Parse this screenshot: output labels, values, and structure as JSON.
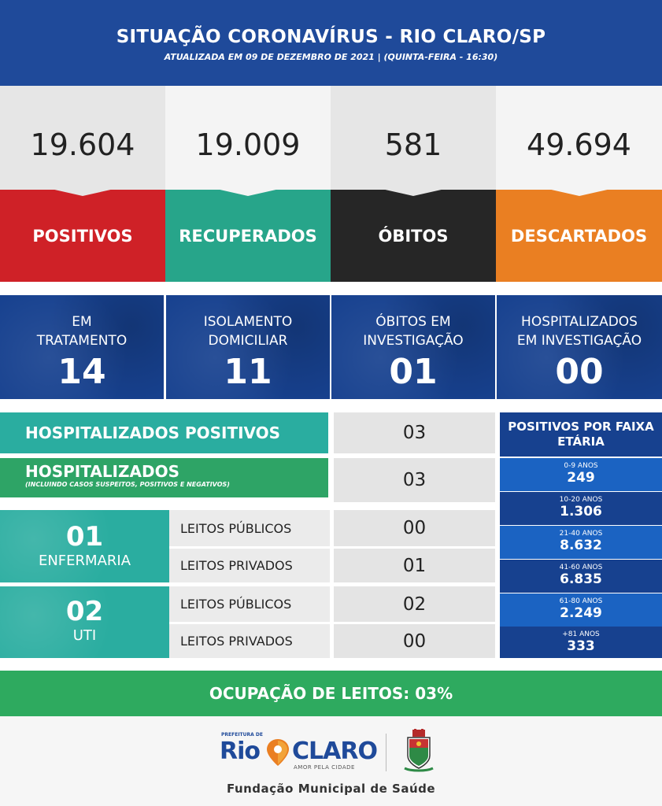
{
  "header": {
    "title": "SITUAÇÃO CORONAVÍRUS - RIO CLARO/SP",
    "subtitle": "ATUALIZADA EM 09 DE DEZEMBRO DE 2021 | (QUINTA-FEIRA - 16:30)"
  },
  "stats": [
    {
      "value": "19.604",
      "label": "POSITIVOS",
      "color": "#cf2127"
    },
    {
      "value": "19.009",
      "label": "RECUPERADOS",
      "color": "#27a58a"
    },
    {
      "value": "581",
      "label": "ÓBITOS",
      "color": "#262626"
    },
    {
      "value": "49.694",
      "label": "DESCARTADOS",
      "color": "#ea7f22"
    }
  ],
  "info": [
    {
      "label": "EM\nTRATAMENTO",
      "value": "14"
    },
    {
      "label": "ISOLAMENTO\nDOMICILIAR",
      "value": "11"
    },
    {
      "label": "ÓBITOS EM\nINVESTIGAÇÃO",
      "value": "01"
    },
    {
      "label": "HOSPITALIZADOS\nEM INVESTIGAÇÃO",
      "value": "00"
    }
  ],
  "hospitalizados_positivos": {
    "label": "HOSPITALIZADOS POSITIVOS",
    "value": "03"
  },
  "hospitalizados": {
    "label": "HOSPITALIZADOS",
    "note": "(INCLUINDO CASOS SUSPEITOS, POSITIVOS E NEGATIVOS)",
    "value": "03"
  },
  "enfermaria": {
    "count": "01",
    "label": "ENFERMARIA",
    "publicos_label": "LEITOS PÚBLICOS",
    "publicos": "00",
    "privados_label": "LEITOS PRIVADOS",
    "privados": "01"
  },
  "uti": {
    "count": "02",
    "label": "UTI",
    "publicos_label": "LEITOS PÚBLICOS",
    "publicos": "02",
    "privados_label": "LEITOS PRIVADOS",
    "privados": "00"
  },
  "faixa_etaria": {
    "title": "POSITIVOS POR FAIXA ETÁRIA",
    "rows": [
      {
        "range": "0-9 ANOS",
        "value": "249"
      },
      {
        "range": "10-20 ANOS",
        "value": "1.306"
      },
      {
        "range": "21-40 ANOS",
        "value": "8.632"
      },
      {
        "range": "41-60 ANOS",
        "value": "6.835"
      },
      {
        "range": "61-80 ANOS",
        "value": "2.249"
      },
      {
        "range": "+81 ANOS",
        "value": "333"
      }
    ]
  },
  "occupancy": "OCUPAÇÃO DE LEITOS: 03%",
  "footer": {
    "logo_top": "PREFEITURA DE",
    "logo_rio": "Rio",
    "logo_claro": "CLARO",
    "logo_slogan": "AMOR PELA CIDADE",
    "org": "Fundação Municipal de Saúde"
  }
}
